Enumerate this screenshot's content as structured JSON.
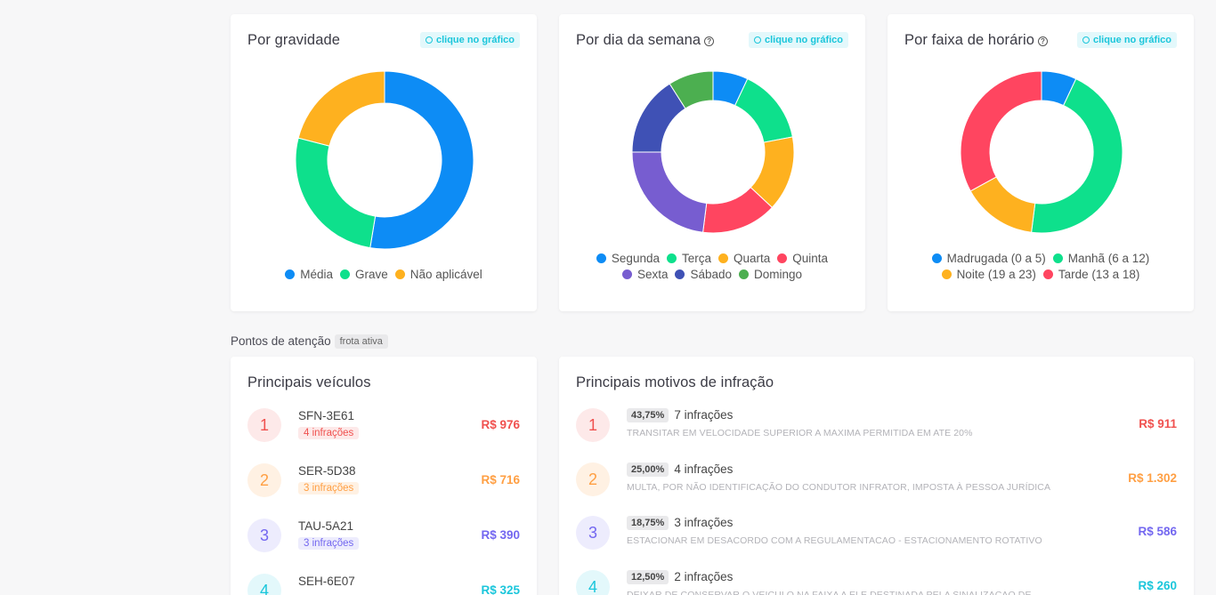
{
  "colors": {
    "blue": "#0d8cf5",
    "green": "#0ee08c",
    "orange": "#feb11f",
    "red": "#ff4560",
    "purple": "#775dd0",
    "indigo": "#3f51b5",
    "darkgreen": "#4caf50",
    "accent_cyan": "#1bc6db"
  },
  "click_badge_label": "clique no gráfico",
  "charts": {
    "gravidade": {
      "title": "Por gravidade",
      "chart_data": {
        "type": "pie",
        "labels": [
          "Média",
          "Grave",
          "Não aplicável"
        ],
        "values": [
          52.6,
          26.4,
          21.0
        ],
        "colors": [
          "#0d8cf5",
          "#0ee08c",
          "#feb11f"
        ]
      }
    },
    "semana": {
      "title": "Por dia da semana",
      "help_icon": "question-icon",
      "chart_data": {
        "type": "pie",
        "labels": [
          "Segunda",
          "Terça",
          "Quarta",
          "Quinta",
          "Sexta",
          "Sábado",
          "Domingo"
        ],
        "values": [
          7.0,
          15.0,
          15.0,
          15.0,
          23.0,
          16.0,
          9.0
        ],
        "colors": [
          "#0d8cf5",
          "#0ee08c",
          "#feb11f",
          "#ff4560",
          "#775dd0",
          "#3f51b5",
          "#4caf50"
        ]
      }
    },
    "horario": {
      "title": "Por faixa de horário",
      "help_icon": "question-icon",
      "chart_data": {
        "type": "pie",
        "labels": [
          "Madrugada (0 a 5)",
          "Manhã (6 a 12)",
          "Noite (19 a 23)",
          "Tarde (13 a 18)"
        ],
        "values": [
          7.0,
          45.0,
          15.0,
          33.0
        ],
        "colors": [
          "#0d8cf5",
          "#0ee08c",
          "#feb11f",
          "#ff4560"
        ]
      }
    }
  },
  "section": {
    "label": "Pontos de atenção",
    "tag": "frota ativa"
  },
  "veiculos": {
    "title": "Principais veículos",
    "items": [
      {
        "rank": "1",
        "plate": "SFN-3E61",
        "tag": "4 infrações",
        "amount": "R$ 976",
        "color": "#f0514f",
        "bg": "#fde9e9"
      },
      {
        "rank": "2",
        "plate": "SER-5D38",
        "tag": "3 infrações",
        "amount": "R$ 716",
        "color": "#ff9f43",
        "bg": "#fff1e3"
      },
      {
        "rank": "3",
        "plate": "TAU-5A21",
        "tag": "3 infrações",
        "amount": "R$ 390",
        "color": "#7367f0",
        "bg": "#edecfd"
      },
      {
        "rank": "4",
        "plate": "SEH-6E07",
        "tag": "",
        "amount": "R$ 325",
        "color": "#1bc6db",
        "bg": "#e3f8fb"
      }
    ]
  },
  "motivos": {
    "title": "Principais motivos de infração",
    "items": [
      {
        "rank": "1",
        "pct": "43,75%",
        "count": "7 infrações",
        "desc": "TRANSITAR EM VELOCIDADE SUPERIOR A MAXIMA PERMITIDA EM ATE 20%",
        "amount": "R$ 911",
        "color": "#f0514f",
        "bg": "#fde9e9"
      },
      {
        "rank": "2",
        "pct": "25,00%",
        "count": "4 infrações",
        "desc": "MULTA, POR NÃO IDENTIFICAÇÃO DO CONDUTOR INFRATOR, IMPOSTA À PESSOA JURÍDICA",
        "amount": "R$ 1.302",
        "color": "#ff9f43",
        "bg": "#fff1e3"
      },
      {
        "rank": "3",
        "pct": "18,75%",
        "count": "3 infrações",
        "desc": "ESTACIONAR EM DESACORDO COM A REGULAMENTACAO - ESTACIONAMENTO ROTATIVO",
        "amount": "R$ 586",
        "color": "#7367f0",
        "bg": "#edecfd"
      },
      {
        "rank": "4",
        "pct": "12,50%",
        "count": "2 infrações",
        "desc": "DEIXAR DE CONSERVAR O VEICULO NA FAIXA A ELE DESTINADA PELA SINALIZACAO DE",
        "amount": "R$ 260",
        "color": "#1bc6db",
        "bg": "#e3f8fb"
      }
    ]
  }
}
